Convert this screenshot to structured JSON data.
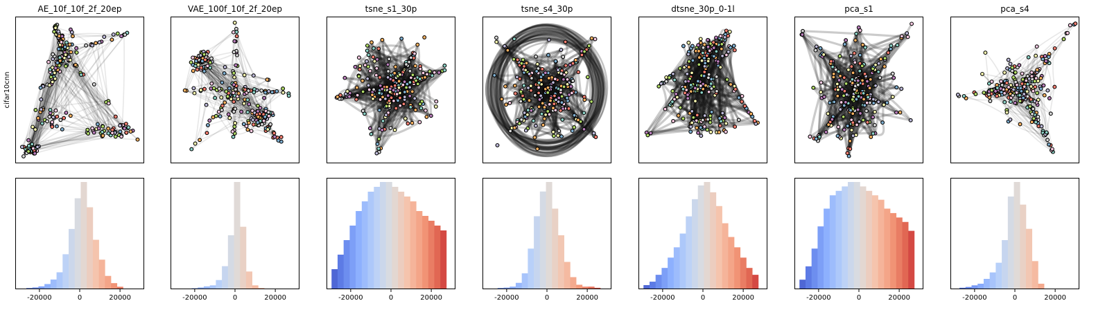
{
  "row_label": "cifar10cnn",
  "panels": [
    {
      "title": "AE_10f_10f_2f_20ep"
    },
    {
      "title": "VAE_100f_10f_2f_20ep"
    },
    {
      "title": "tsne_s1_30p"
    },
    {
      "title": "tsne_s4_30p"
    },
    {
      "title": "dtsne_30p_0-1l"
    },
    {
      "title": "pca_s1"
    },
    {
      "title": "pca_s4"
    }
  ],
  "class_colors": [
    "#8dd3c7",
    "#ffffb3",
    "#bebada",
    "#fb8072",
    "#80b1d3",
    "#fdb462",
    "#b3de69",
    "#fccde5",
    "#d9d9d9",
    "#bc80bd"
  ],
  "chart_data": [
    {
      "type": "histogram",
      "title": "AE_10f_10f_2f_20ep",
      "bin_centers": [
        -25000,
        -22000,
        -19000,
        -16000,
        -13000,
        -10000,
        -7000,
        -4000,
        -1000,
        2000,
        5000,
        8000,
        11000,
        14000,
        17000,
        20000
      ],
      "values": [
        0.3,
        0.6,
        1.2,
        2.5,
        5,
        9,
        19,
        33,
        50,
        59,
        45,
        27,
        16,
        7,
        3,
        1
      ],
      "xticks": [
        "-20000",
        "0",
        "20000"
      ],
      "xlim": [
        -32000,
        32000
      ]
    },
    {
      "type": "histogram",
      "title": "VAE_100f_10f_2f_20ep",
      "bin_centers": [
        -20000,
        -17000,
        -14000,
        -11000,
        -8000,
        -5000,
        -2000,
        1000,
        4000,
        7000,
        10000,
        13000
      ],
      "values": [
        0.3,
        1,
        2,
        3,
        8,
        21,
        50,
        100,
        58,
        16,
        3,
        0.5
      ],
      "xticks": [
        "-20000",
        "0",
        "20000"
      ],
      "xlim": [
        -32000,
        32000
      ]
    },
    {
      "type": "histogram",
      "title": "tsne_s1_30p",
      "bin_centers": [
        -28000,
        -25000,
        -22000,
        -19000,
        -16000,
        -13000,
        -10000,
        -7000,
        -4000,
        -1000,
        2000,
        5000,
        8000,
        11000,
        14000,
        17000,
        20000,
        23000,
        26000
      ],
      "values": [
        4,
        7,
        10,
        13,
        16,
        18,
        20,
        21,
        22,
        22,
        21,
        20,
        19,
        18,
        16,
        15,
        14,
        13,
        12
      ],
      "xticks": [
        "-20000",
        "0",
        "20000"
      ],
      "xlim": [
        -32000,
        32000
      ]
    },
    {
      "type": "histogram",
      "title": "tsne_s4_30p",
      "bin_centers": [
        -23000,
        -20000,
        -17000,
        -14000,
        -11000,
        -8000,
        -5000,
        -2000,
        1000,
        4000,
        7000,
        10000,
        13000,
        16000,
        19000,
        22000,
        25000
      ],
      "values": [
        0.3,
        0.5,
        1,
        3,
        8,
        21,
        38,
        51,
        56,
        42,
        28,
        14,
        6,
        2,
        1,
        1,
        0.4
      ],
      "xticks": [
        "-20000",
        "0",
        "20000"
      ],
      "xlim": [
        -32000,
        32000
      ]
    },
    {
      "type": "histogram",
      "title": "dtsne_30p_0-1l",
      "bin_centers": [
        -28000,
        -25000,
        -22000,
        -19000,
        -16000,
        -13000,
        -10000,
        -7000,
        -4000,
        -1000,
        2000,
        5000,
        8000,
        11000,
        14000,
        17000,
        20000,
        23000,
        26000
      ],
      "values": [
        1,
        2,
        4,
        6,
        9,
        12,
        16,
        21,
        26,
        30,
        31,
        28,
        24,
        19,
        15,
        12,
        9,
        6,
        4
      ],
      "xticks": [
        "-20000",
        "0",
        "20000"
      ],
      "xlim": [
        -32000,
        32000
      ]
    },
    {
      "type": "histogram",
      "title": "pca_s1",
      "bin_centers": [
        -28000,
        -25000,
        -22000,
        -19000,
        -16000,
        -13000,
        -10000,
        -7000,
        -4000,
        -1000,
        2000,
        5000,
        8000,
        11000,
        14000,
        17000,
        20000,
        23000,
        26000
      ],
      "values": [
        2,
        5,
        9,
        14,
        18,
        21,
        22,
        23,
        24,
        24,
        23,
        22,
        21,
        20,
        18,
        17,
        16,
        15,
        13
      ],
      "xticks": [
        "-20000",
        "0",
        "20000"
      ],
      "xlim": [
        -32000,
        32000
      ]
    },
    {
      "type": "histogram",
      "title": "pca_s4",
      "bin_centers": [
        -26000,
        -23000,
        -20000,
        -17000,
        -14000,
        -11000,
        -8000,
        -5000,
        -2000,
        1000,
        4000,
        7000,
        10000,
        13000
      ],
      "values": [
        0.5,
        1,
        2,
        3,
        6,
        10,
        16,
        30,
        57,
        66,
        52,
        37,
        17,
        3
      ],
      "xticks": [
        "-20000",
        "0",
        "20000"
      ],
      "xlim": [
        -32000,
        32000
      ]
    }
  ]
}
